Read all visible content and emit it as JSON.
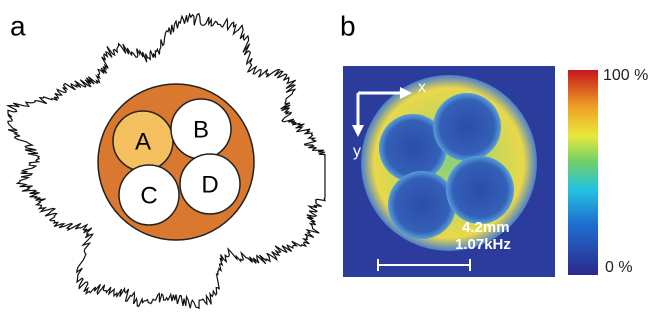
{
  "panel_a": {
    "label": "a",
    "circles": [
      "A",
      "B",
      "C",
      "D"
    ]
  },
  "panel_b": {
    "label": "b",
    "axis_x": "x",
    "axis_y": "y",
    "scale_length": "4.2mm",
    "scale_frequency": "1.07kHz",
    "colorbar_max": "100 %",
    "colorbar_min": "0 %"
  }
}
